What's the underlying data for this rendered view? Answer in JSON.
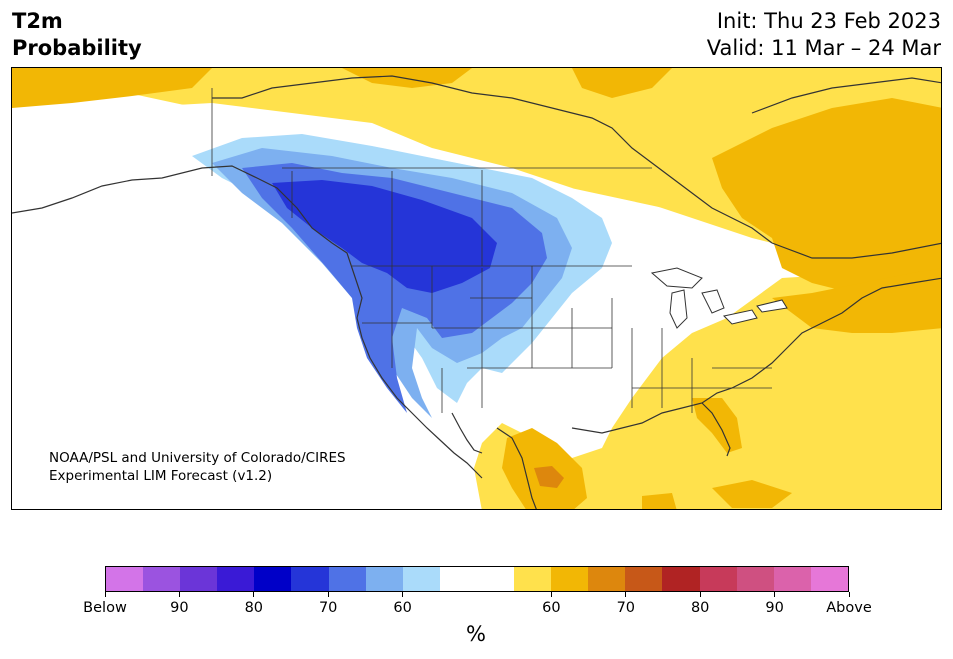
{
  "header": {
    "title_line1": "T2m",
    "title_line2": "Probability",
    "init": "Init: Thu 23 Feb 2023",
    "valid": "Valid: 11 Mar – 24 Mar"
  },
  "map": {
    "credit_line1": "NOAA/PSL and University of Colorado/CIRES",
    "credit_line2": "Experimental LIM Forecast (v1.2)"
  },
  "colorbar": {
    "colors": [
      "#d374e8",
      "#9b53e0",
      "#6b35d8",
      "#3a1ad6",
      "#0000c8",
      "#2535d8",
      "#4f72e6",
      "#7db0f0",
      "#aadbfa",
      "#ffffff",
      "#ffffff",
      "#ffe14c",
      "#f2b705",
      "#dd870d",
      "#c75818",
      "#b02323",
      "#c73a5a",
      "#cf5081",
      "#db62ab",
      "#e677d8"
    ],
    "tick_labels": [
      "Below",
      "90",
      "80",
      "70",
      "60",
      "60",
      "70",
      "80",
      "90",
      "Above"
    ],
    "unit": "%"
  },
  "palette": {
    "cold_very_strong": "#2535d8",
    "cold_strong": "#4f72e6",
    "cold_moderate": "#7db0f0",
    "cold_weak": "#aadbfa",
    "warm_weak": "#ffe14c",
    "warm_moderate": "#f2b705",
    "warm_strong": "#dd870d",
    "border_color": "#333333"
  }
}
